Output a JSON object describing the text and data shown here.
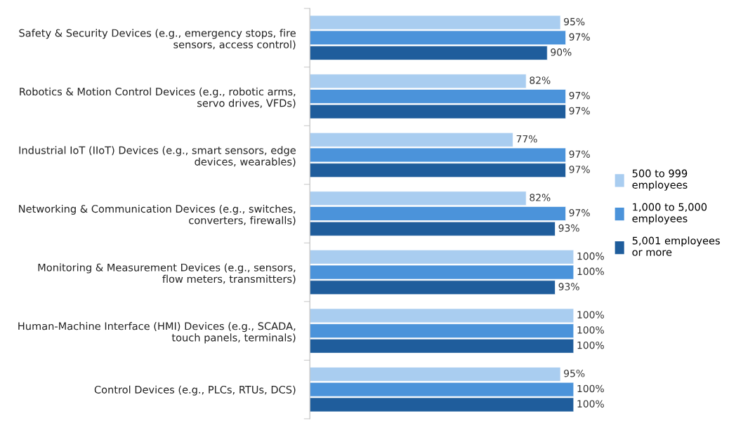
{
  "chart_data": {
    "type": "bar",
    "orientation": "horizontal",
    "categories": [
      "Safety & Security Devices (e.g., emergency stops, fire\nsensors, access control)",
      "Robotics & Motion Control Devices (e.g., robotic arms,\nservo drives, VFDs)",
      "Industrial IoT (IIoT) Devices (e.g., smart sensors, edge\ndevices, wearables)",
      "Networking & Communication Devices (e.g., switches,\nconverters, firewalls)",
      "Monitoring & Measurement Devices (e.g., sensors,\nflow meters, transmitters)",
      "Human-Machine Interface (HMI) Devices (e.g., SCADA,\ntouch panels, terminals)",
      "Control Devices (e.g., PLCs, RTUs, DCS)"
    ],
    "series": [
      {
        "name": "500 to 999\nemployees",
        "color": "#a9cdf0",
        "values": [
          95,
          82,
          77,
          82,
          100,
          100,
          95
        ],
        "value_labels": [
          "95%",
          "82%",
          "77%",
          "82%",
          "100%",
          "100%",
          "95%"
        ]
      },
      {
        "name": "1,000 to 5,000\nemployees",
        "color": "#4b93da",
        "values": [
          97,
          97,
          97,
          97,
          100,
          100,
          100
        ],
        "value_labels": [
          "97%",
          "97%",
          "97%",
          "97%",
          "100%",
          "100%",
          "100%"
        ]
      },
      {
        "name": "5,001 employees\nor more",
        "color": "#1f5d9c",
        "values": [
          90,
          97,
          97,
          93,
          93,
          100,
          100
        ],
        "value_labels": [
          "90%",
          "97%",
          "97%",
          "93%",
          "93%",
          "100%",
          "100%"
        ]
      }
    ],
    "legend": "right",
    "grid": false,
    "tick_labels": "y"
  }
}
